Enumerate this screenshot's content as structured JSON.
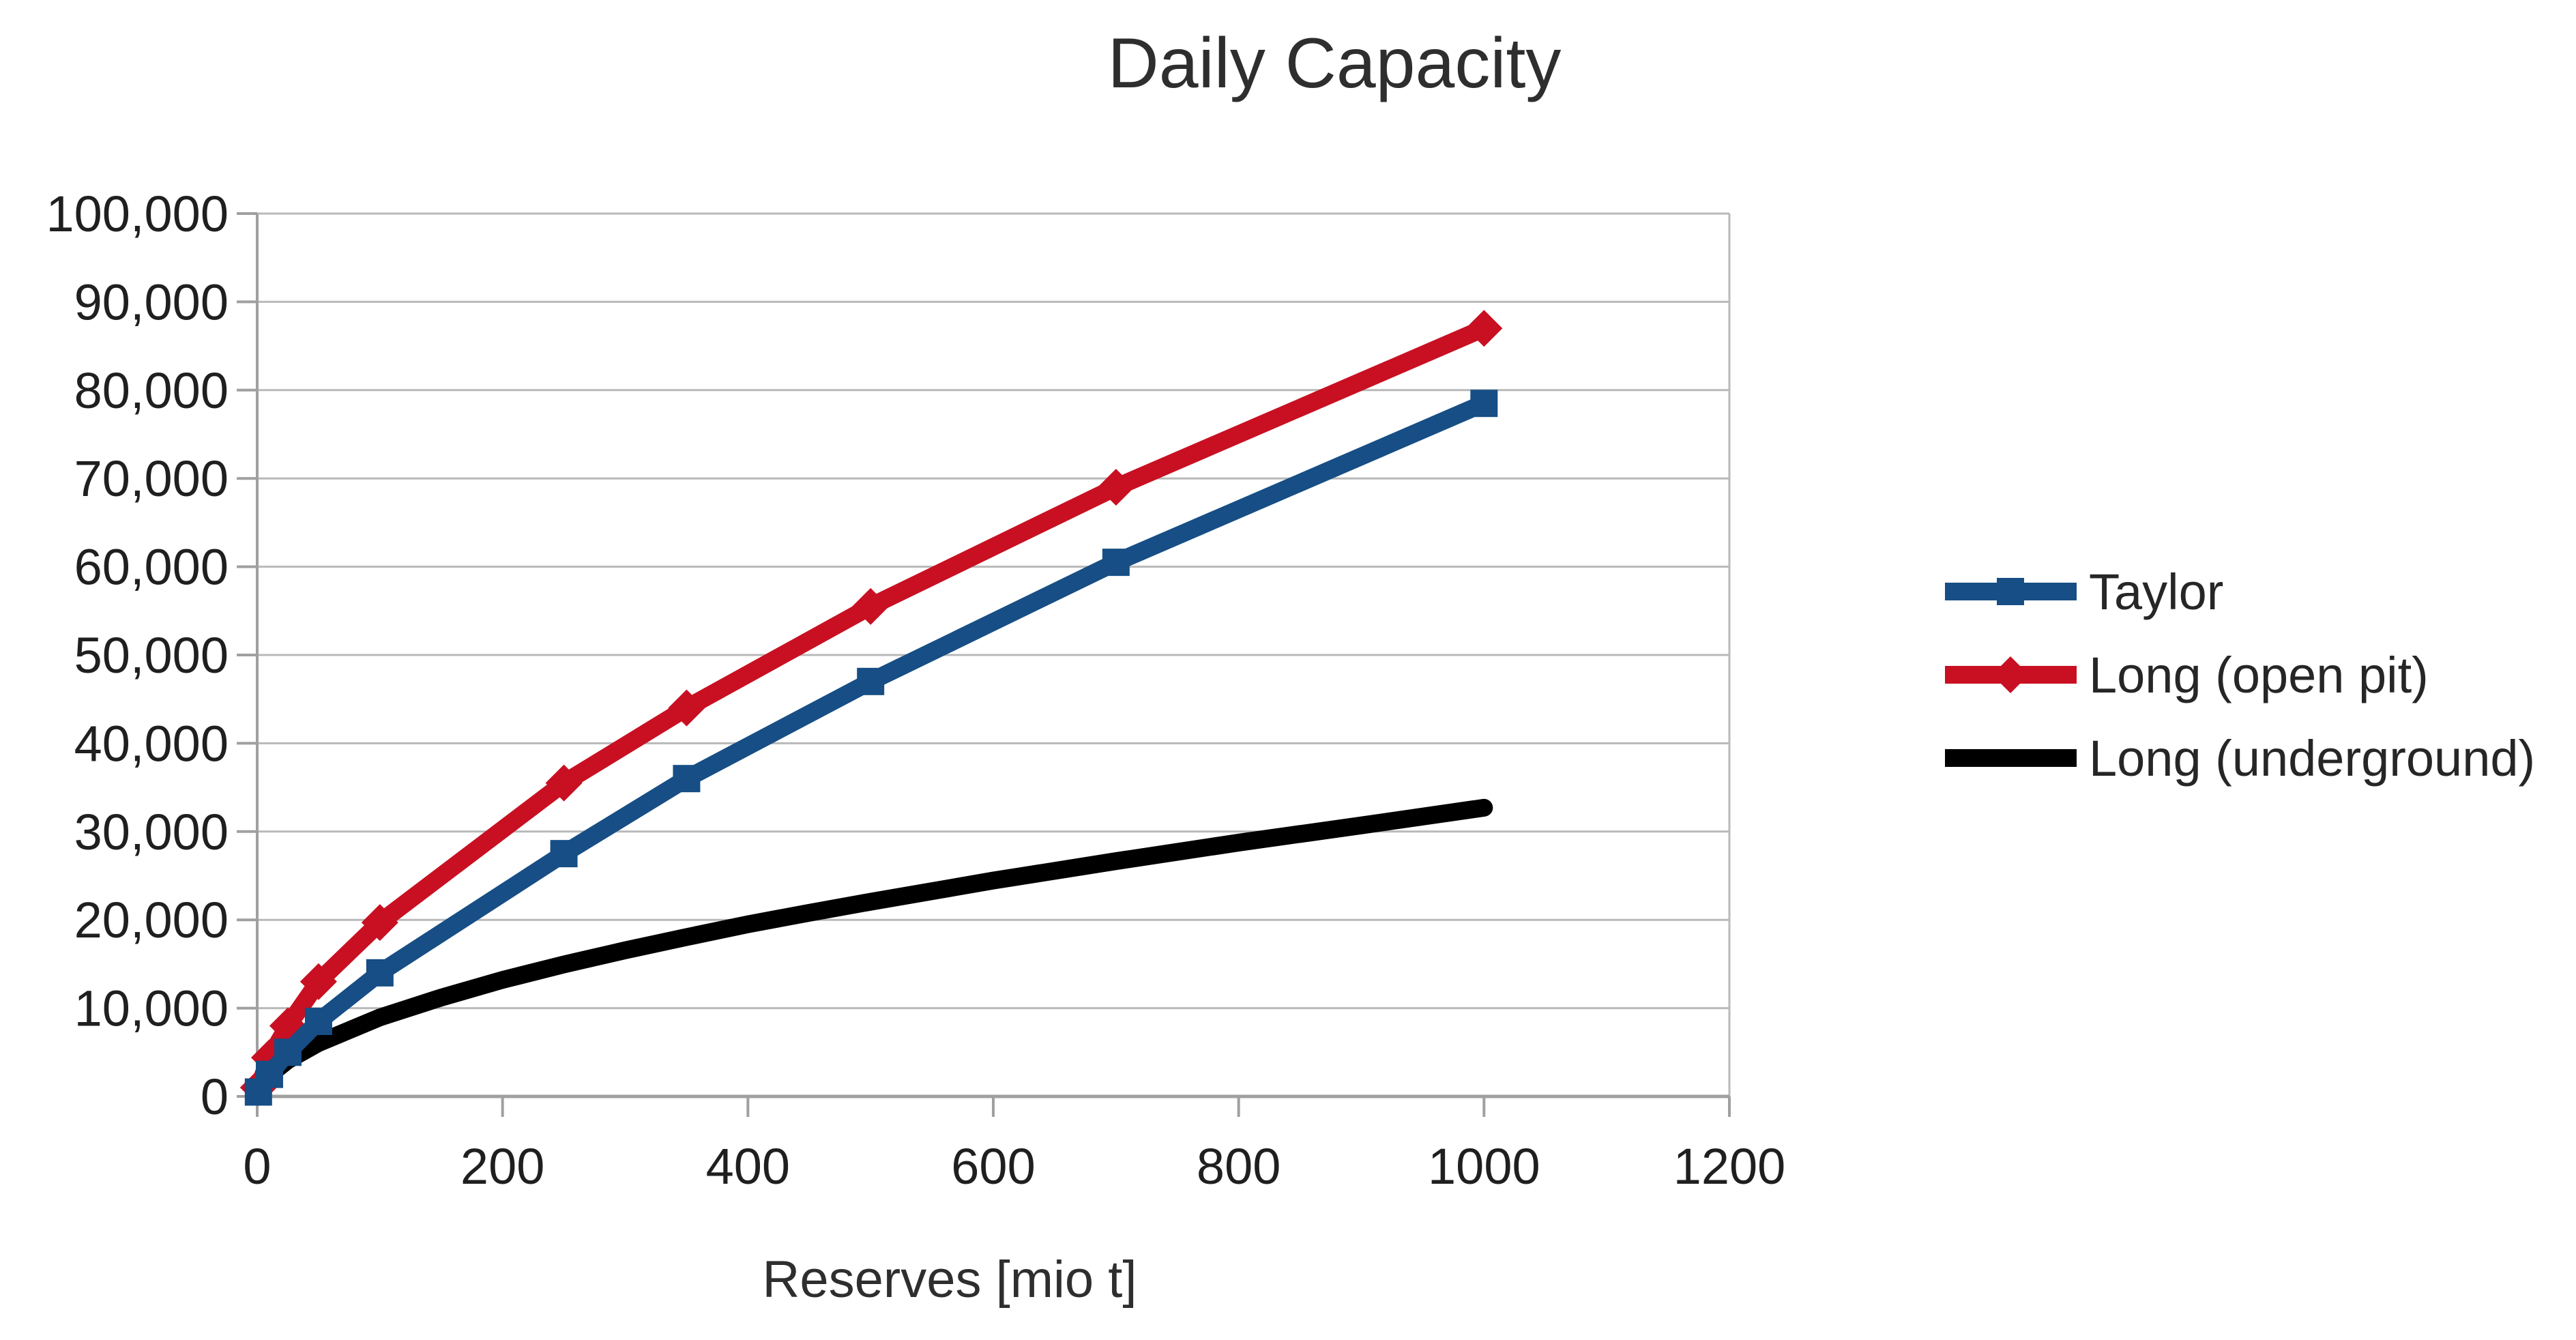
{
  "title": "Daily Capacity",
  "x_axis": {
    "label": "Reserves [mio t]",
    "tick_labels": [
      "0",
      "200",
      "400",
      "600",
      "800",
      "1000",
      "1200"
    ]
  },
  "y_axis": {
    "tick_labels": [
      "0",
      "10,000",
      "20,000",
      "30,000",
      "40,000",
      "50,000",
      "60,000",
      "70,000",
      "80,000",
      "90,000",
      "100,000"
    ]
  },
  "legend": [
    {
      "label": "Taylor",
      "color": "#164e85",
      "marker": "square"
    },
    {
      "label": "Long (open pit)",
      "color": "#c81022",
      "marker": "diamond"
    },
    {
      "label": "Long (underground)",
      "color": "#000000",
      "marker": "none"
    }
  ],
  "colors": {
    "background": "#ffffff",
    "gridline": "#b9b9b9",
    "axis": "#a0a0a0",
    "text": "#262626",
    "taylor": "#164e85",
    "long_open_pit": "#c81022",
    "long_underground": "#000000"
  },
  "chart_data": {
    "type": "line",
    "title": "Daily Capacity",
    "xlabel": "Reserves [mio t]",
    "ylabel": "",
    "xlim": [
      0,
      1200
    ],
    "ylim": [
      0,
      100000
    ],
    "x_ticks": [
      0,
      200,
      400,
      600,
      800,
      1000,
      1200
    ],
    "y_ticks": [
      0,
      10000,
      20000,
      30000,
      40000,
      50000,
      60000,
      70000,
      80000,
      90000,
      100000
    ],
    "grid": "horizontal",
    "legend_position": "right",
    "series": [
      {
        "name": "Taylor",
        "color": "#164e85",
        "marker": "square",
        "x": [
          1,
          10,
          25,
          50,
          100,
          250,
          350,
          500,
          700,
          1000
        ],
        "y": [
          500,
          2500,
          5000,
          8500,
          14000,
          27500,
          36000,
          47000,
          60500,
          78500
        ]
      },
      {
        "name": "Long (open pit)",
        "color": "#c81022",
        "marker": "diamond",
        "x": [
          1,
          10,
          25,
          50,
          100,
          250,
          350,
          500,
          700,
          1000
        ],
        "y": [
          1000,
          4400,
          8000,
          13000,
          19700,
          35500,
          44000,
          55500,
          69000,
          87000
        ]
      },
      {
        "name": "Long (underground)",
        "color": "#000000",
        "marker": "none",
        "x": [
          1,
          10,
          25,
          50,
          100,
          150,
          200,
          250,
          300,
          350,
          400,
          450,
          500,
          600,
          700,
          800,
          900,
          1000
        ],
        "y": [
          650,
          2450,
          4100,
          6050,
          8950,
          11200,
          13200,
          14950,
          16550,
          18050,
          19500,
          20800,
          22050,
          24450,
          26650,
          28750,
          30700,
          32700
        ]
      }
    ]
  }
}
